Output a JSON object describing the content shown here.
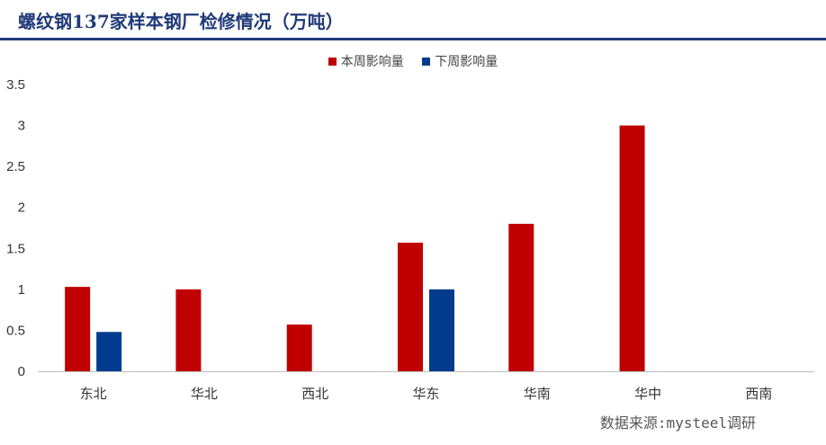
{
  "chart_data": {
    "type": "bar",
    "title": "螺纹钢137家样本钢厂检修情况（万吨）",
    "categories": [
      "东北",
      "华北",
      "西北",
      "华东",
      "华南",
      "华中",
      "西南"
    ],
    "series": [
      {
        "name": "本周影响量",
        "color": "#c00000",
        "values": [
          1.03,
          1.0,
          0.57,
          1.57,
          1.8,
          3.0,
          0
        ]
      },
      {
        "name": "下周影响量",
        "color": "#003b8e",
        "values": [
          0.48,
          0,
          0,
          1.0,
          0,
          0,
          0
        ]
      }
    ],
    "yticks": [
      "0",
      "0.5",
      "1",
      "1.5",
      "2",
      "2.5",
      "3",
      "3.5"
    ],
    "ylim": [
      0,
      3.5
    ],
    "grid": false,
    "legend_position": "top-center",
    "xlabel": "",
    "ylabel": ""
  },
  "source": "数据来源:mysteel调研"
}
